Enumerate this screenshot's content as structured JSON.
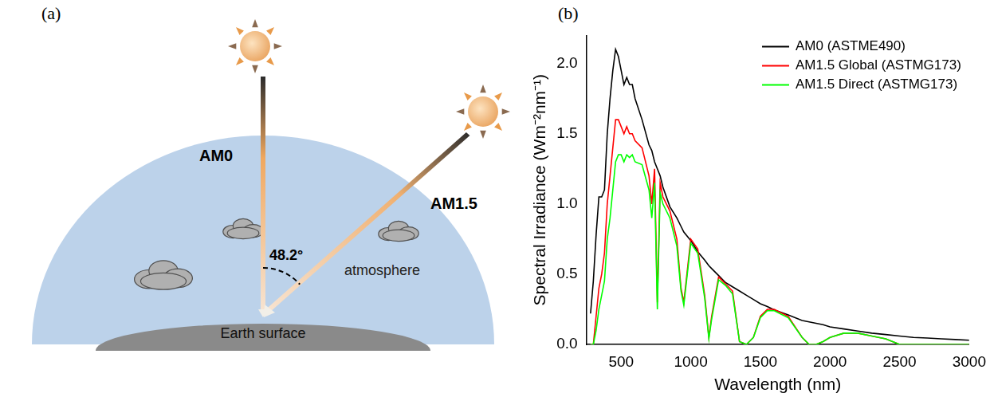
{
  "panel_a": {
    "letter": "(a)",
    "beam_vertical": "AM0",
    "beam_oblique": "AM1.5",
    "angle": "48.2°",
    "atmosphere": "atmosphere",
    "surface": "Earth surface"
  },
  "panel_b": {
    "letter": "(b)"
  },
  "chart_data": {
    "type": "line",
    "x_label": "Wavelength (nm)",
    "y_label": "Spectral Irradiance (Wm⁻²nm⁻¹)",
    "x": [
      280,
      300,
      320,
      340,
      360,
      380,
      400,
      420,
      440,
      460,
      480,
      500,
      520,
      540,
      560,
      580,
      600,
      650,
      700,
      720,
      740,
      760,
      780,
      800,
      850,
      900,
      930,
      950,
      1000,
      1050,
      1100,
      1130,
      1150,
      1200,
      1250,
      1300,
      1350,
      1400,
      1450,
      1500,
      1550,
      1600,
      1700,
      1800,
      1850,
      1900,
      1950,
      2000,
      2100,
      2200,
      2300,
      2400,
      2500,
      2600,
      2700,
      2800,
      2900,
      3000
    ],
    "series": [
      {
        "name": "AM0 (ASTME490)",
        "color": "#000000",
        "values": [
          0.22,
          0.45,
          0.78,
          1.05,
          1.05,
          1.1,
          1.5,
          1.75,
          1.95,
          2.1,
          2.05,
          1.95,
          1.85,
          1.9,
          1.85,
          1.85,
          1.75,
          1.6,
          1.42,
          1.38,
          1.3,
          1.25,
          1.2,
          1.12,
          0.98,
          0.9,
          0.84,
          0.8,
          0.74,
          0.66,
          0.6,
          0.56,
          0.54,
          0.49,
          0.44,
          0.41,
          0.38,
          0.35,
          0.32,
          0.29,
          0.27,
          0.245,
          0.21,
          0.17,
          0.16,
          0.15,
          0.14,
          0.125,
          0.11,
          0.095,
          0.08,
          0.07,
          0.06,
          0.05,
          0.045,
          0.04,
          0.035,
          0.03
        ]
      },
      {
        "name": "AM1.5 Global (ASTMG173)",
        "color": "#ff0000",
        "values": [
          0,
          0,
          0.2,
          0.4,
          0.5,
          0.65,
          1.0,
          1.2,
          1.4,
          1.6,
          1.6,
          1.55,
          1.5,
          1.55,
          1.5,
          1.5,
          1.45,
          1.4,
          1.2,
          1.0,
          1.25,
          0.3,
          1.15,
          1.05,
          0.95,
          0.75,
          0.4,
          0.3,
          0.75,
          0.68,
          0.35,
          0.05,
          0.2,
          0.48,
          0.43,
          0.38,
          0.02,
          0,
          0.05,
          0.2,
          0.25,
          0.25,
          0.2,
          0.05,
          0,
          0,
          0.02,
          0.05,
          0.08,
          0.08,
          0.06,
          0.04,
          0,
          0,
          0,
          0,
          0,
          0
        ]
      },
      {
        "name": "AM1.5 Direct (ASTMG173)",
        "color": "#00ff00",
        "values": [
          0,
          0,
          0.1,
          0.25,
          0.35,
          0.45,
          0.75,
          0.9,
          1.1,
          1.3,
          1.35,
          1.35,
          1.3,
          1.35,
          1.33,
          1.35,
          1.3,
          1.28,
          1.1,
          0.9,
          1.15,
          0.25,
          1.08,
          1.0,
          0.9,
          0.7,
          0.38,
          0.28,
          0.72,
          0.65,
          0.33,
          0.04,
          0.18,
          0.46,
          0.42,
          0.36,
          0.02,
          0,
          0.05,
          0.19,
          0.24,
          0.24,
          0.19,
          0.05,
          0,
          0,
          0.02,
          0.05,
          0.08,
          0.08,
          0.06,
          0.04,
          0,
          0,
          0,
          0,
          0,
          0
        ]
      }
    ],
    "xlim": [
      250,
      3000
    ],
    "xticks": [
      500,
      1000,
      1500,
      2000,
      2500,
      3000
    ],
    "ylim": [
      0,
      2.2
    ],
    "yticks": [
      {
        "value": 0,
        "label": "0.0"
      },
      {
        "value": 0.5,
        "label": "0.5"
      },
      {
        "value": 1,
        "label": "1.0"
      },
      {
        "value": 1.5,
        "label": "1.5"
      },
      {
        "value": 2,
        "label": "2.0"
      }
    ],
    "grid": false,
    "legend": "upper right"
  }
}
